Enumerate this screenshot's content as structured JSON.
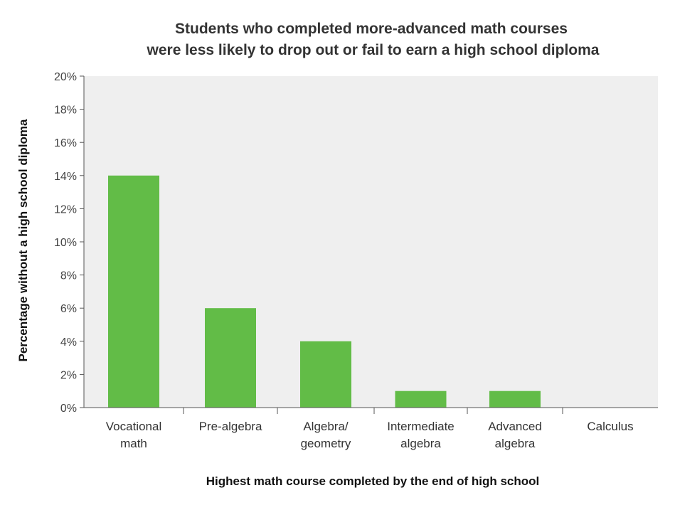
{
  "chart_data": {
    "type": "bar",
    "title_lines": [
      "Students who completed more-advanced math courses",
      "were less likely to drop out or fail to earn a high school diploma"
    ],
    "xlabel": "Highest math course completed by the end of high school",
    "ylabel": "Percentage without a high school diploma",
    "categories": [
      [
        "Vocational",
        "math"
      ],
      [
        "Pre-algebra"
      ],
      [
        "Algebra/",
        "geometry"
      ],
      [
        "Intermediate",
        "algebra"
      ],
      [
        "Advanced",
        "algebra"
      ],
      [
        "Calculus"
      ]
    ],
    "values": [
      14,
      6,
      4,
      1,
      1,
      0
    ],
    "ylim": [
      0,
      20
    ],
    "yticks": [
      0,
      2,
      4,
      6,
      8,
      10,
      12,
      14,
      16,
      18,
      20
    ],
    "ytick_suffix": "%",
    "grid": false,
    "legend": "none",
    "colors": {
      "bar": "#62bc47",
      "plot_bg": "#efefef",
      "axis": "#555555"
    }
  }
}
